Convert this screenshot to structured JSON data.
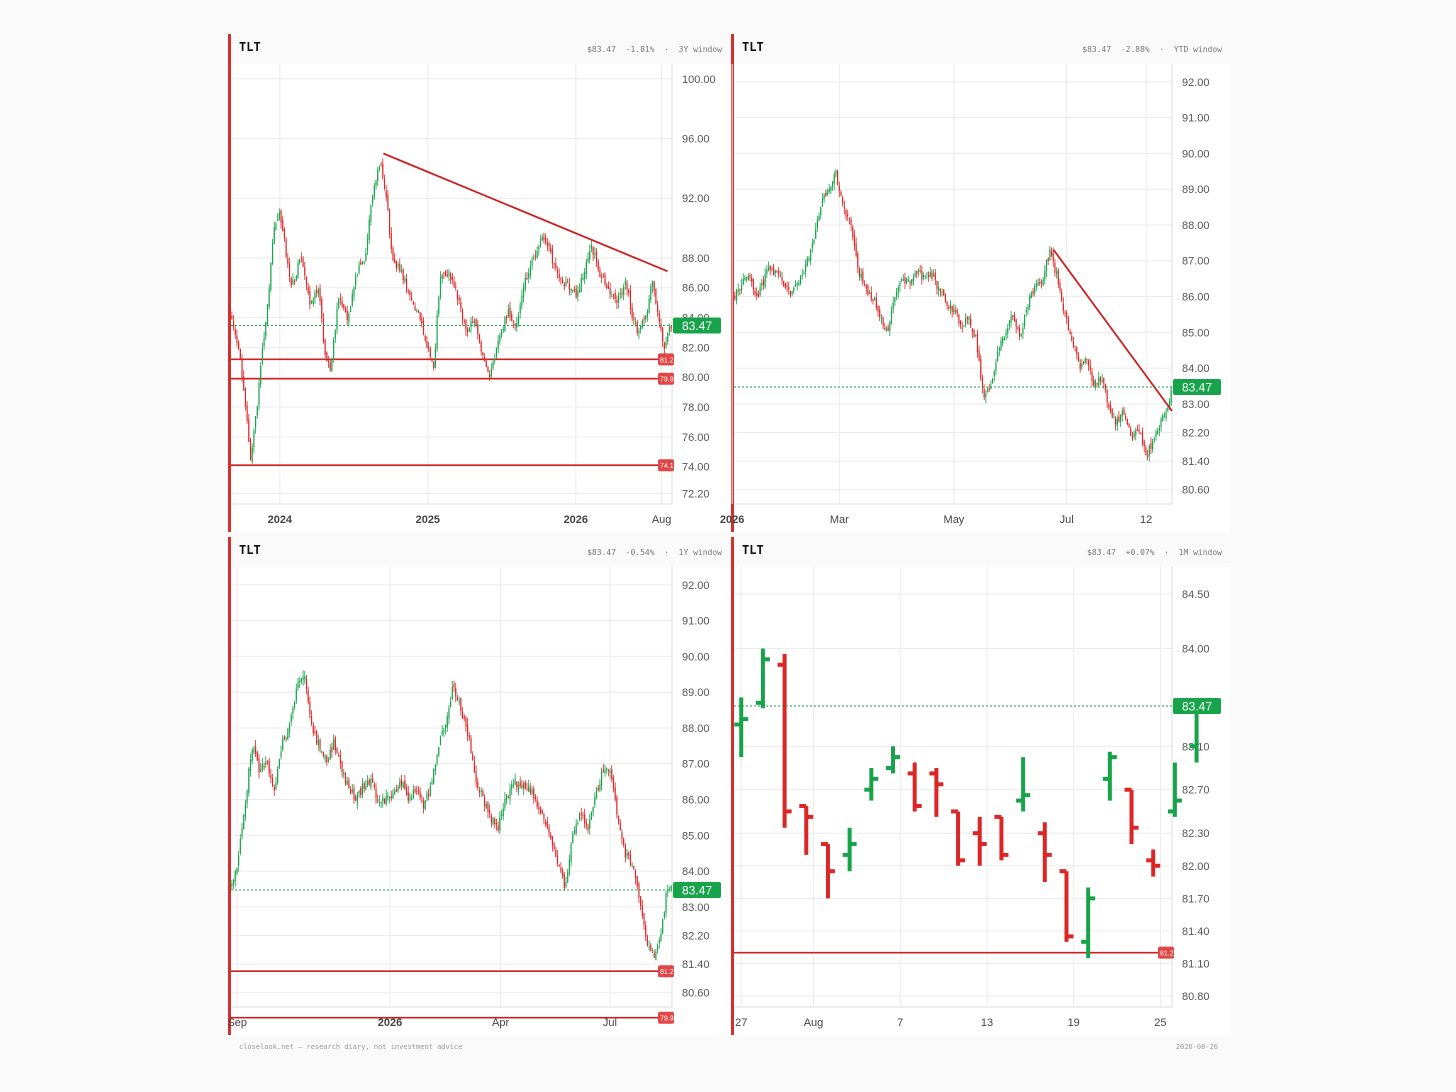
{
  "colors": {
    "up": "#16a34a",
    "down": "#dc2626",
    "line": "#cc1f1f",
    "grid": "#ececec",
    "axis_text": "#555555",
    "price_tag": "#16a34a"
  },
  "footer": {
    "left": "closelook.net — research diary, not investment advice",
    "right": "2026-08-26"
  },
  "panels": [
    {
      "title": "TLT",
      "price": "$83.47",
      "change": "-1.81%",
      "window": "3Y window",
      "current_price_label": "83.47"
    },
    {
      "title": "TLT",
      "price": "$83.47",
      "change": "-2.88%",
      "window": "YTD window",
      "current_price_label": "83.47"
    },
    {
      "title": "TLT",
      "price": "$83.47",
      "change": "-0.54%",
      "window": "1Y window",
      "current_price_label": "83.47"
    },
    {
      "title": "TLT",
      "price": "$83.47",
      "change": "+0.07%",
      "window": "1M window",
      "current_price_label": "83.47"
    }
  ],
  "chart_data": [
    {
      "type": "candlestick",
      "ticker": "TLT",
      "window": "3Y window",
      "ylim": [
        71.5,
        101
      ],
      "yticks": [
        "100.00",
        "96.00",
        "92.00",
        "88.00",
        "86.00",
        "84.00",
        "82.00",
        "80.00",
        "78.00",
        "76.00",
        "74.00",
        "72.20"
      ],
      "xticks": [
        {
          "label": "2024",
          "x": 2024.0
        },
        {
          "label": "2025",
          "x": 2025.0
        },
        {
          "label": "2026",
          "x": 2026.0
        },
        {
          "label": "Aug",
          "x": 2026.58
        }
      ],
      "xlim": [
        2023.67,
        2026.65
      ],
      "last_price": 83.47,
      "hlines": [
        {
          "value": 81.2,
          "tag": "81.2"
        },
        {
          "value": 79.9,
          "tag": "79.9"
        },
        {
          "value": 74.1,
          "tag": "74.1"
        }
      ],
      "trendlines": [
        {
          "x1": 2024.7,
          "y1": 95.0,
          "x2": 2026.62,
          "y2": 87.1
        }
      ],
      "path": [
        [
          2023.67,
          84.2
        ],
        [
          2023.72,
          82.0
        ],
        [
          2023.76,
          79.0
        ],
        [
          2023.8,
          74.5
        ],
        [
          2023.84,
          77.5
        ],
        [
          2023.88,
          81.5
        ],
        [
          2023.92,
          85.0
        ],
        [
          2023.96,
          90.0
        ],
        [
          2024.0,
          91.0
        ],
        [
          2024.04,
          88.5
        ],
        [
          2024.08,
          86.0
        ],
        [
          2024.14,
          88.0
        ],
        [
          2024.2,
          85.0
        ],
        [
          2024.26,
          86.0
        ],
        [
          2024.3,
          82.0
        ],
        [
          2024.34,
          80.5
        ],
        [
          2024.4,
          85.5
        ],
        [
          2024.46,
          84.0
        ],
        [
          2024.52,
          87.0
        ],
        [
          2024.58,
          88.0
        ],
        [
          2024.62,
          92.0
        ],
        [
          2024.68,
          94.5
        ],
        [
          2024.72,
          92.0
        ],
        [
          2024.76,
          88.0
        ],
        [
          2024.82,
          87.0
        ],
        [
          2024.88,
          85.5
        ],
        [
          2024.94,
          84.0
        ],
        [
          2025.0,
          82.0
        ],
        [
          2025.04,
          80.5
        ],
        [
          2025.08,
          86.5
        ],
        [
          2025.14,
          87.0
        ],
        [
          2025.2,
          85.5
        ],
        [
          2025.26,
          83.0
        ],
        [
          2025.32,
          84.0
        ],
        [
          2025.38,
          81.0
        ],
        [
          2025.42,
          80.0
        ],
        [
          2025.48,
          82.5
        ],
        [
          2025.54,
          84.5
        ],
        [
          2025.6,
          83.5
        ],
        [
          2025.66,
          86.5
        ],
        [
          2025.72,
          88.0
        ],
        [
          2025.78,
          89.5
        ],
        [
          2025.84,
          88.0
        ],
        [
          2025.9,
          86.5
        ],
        [
          2025.96,
          86.0
        ],
        [
          2026.0,
          85.5
        ],
        [
          2026.06,
          87.0
        ],
        [
          2026.1,
          89.0
        ],
        [
          2026.16,
          87.0
        ],
        [
          2026.22,
          86.0
        ],
        [
          2026.28,
          85.0
        ],
        [
          2026.34,
          86.5
        ],
        [
          2026.38,
          84.0
        ],
        [
          2026.42,
          83.0
        ],
        [
          2026.48,
          84.5
        ],
        [
          2026.52,
          86.5
        ],
        [
          2026.56,
          84.0
        ],
        [
          2026.6,
          82.0
        ],
        [
          2026.64,
          83.47
        ]
      ]
    },
    {
      "type": "candlestick",
      "ticker": "TLT",
      "window": "YTD window",
      "ylim": [
        80.2,
        92.5
      ],
      "yticks": [
        "92.00",
        "91.00",
        "90.00",
        "89.00",
        "88.00",
        "87.00",
        "86.00",
        "85.00",
        "84.00",
        "83.00",
        "82.20",
        "81.40",
        "80.60"
      ],
      "xticks": [
        {
          "label": "2026",
          "x": 0
        },
        {
          "label": "Mar",
          "x": 58
        },
        {
          "label": "May",
          "x": 120
        },
        {
          "label": "Jul",
          "x": 181
        },
        {
          "label": "12",
          "x": 224
        }
      ],
      "xlim": [
        1,
        238
      ],
      "last_price": 83.47,
      "hlines": [],
      "trendlines": [
        {
          "x1": 174,
          "y1": 87.3,
          "x2": 238,
          "y2": 82.8
        }
      ],
      "path": [
        [
          1,
          86.0
        ],
        [
          8,
          86.6
        ],
        [
          14,
          86.0
        ],
        [
          20,
          86.8
        ],
        [
          26,
          86.5
        ],
        [
          32,
          86.1
        ],
        [
          38,
          86.6
        ],
        [
          44,
          87.5
        ],
        [
          48,
          88.6
        ],
        [
          52,
          89.0
        ],
        [
          56,
          89.5
        ],
        [
          60,
          88.5
        ],
        [
          64,
          88.0
        ],
        [
          68,
          86.8
        ],
        [
          72,
          86.2
        ],
        [
          76,
          86.0
        ],
        [
          80,
          85.5
        ],
        [
          84,
          85.0
        ],
        [
          88,
          86.0
        ],
        [
          92,
          86.5
        ],
        [
          96,
          86.4
        ],
        [
          100,
          86.7
        ],
        [
          104,
          86.5
        ],
        [
          108,
          86.6
        ],
        [
          112,
          86.2
        ],
        [
          116,
          85.8
        ],
        [
          120,
          85.6
        ],
        [
          124,
          85.2
        ],
        [
          128,
          85.4
        ],
        [
          132,
          84.8
        ],
        [
          136,
          83.2
        ],
        [
          140,
          83.5
        ],
        [
          144,
          84.5
        ],
        [
          148,
          85.0
        ],
        [
          152,
          85.5
        ],
        [
          156,
          84.9
        ],
        [
          160,
          85.8
        ],
        [
          164,
          86.2
        ],
        [
          168,
          86.5
        ],
        [
          172,
          87.3
        ],
        [
          176,
          86.5
        ],
        [
          180,
          85.5
        ],
        [
          184,
          84.8
        ],
        [
          188,
          84.0
        ],
        [
          192,
          84.2
        ],
        [
          196,
          83.5
        ],
        [
          200,
          83.8
        ],
        [
          204,
          82.8
        ],
        [
          208,
          82.5
        ],
        [
          212,
          82.8
        ],
        [
          216,
          82.0
        ],
        [
          220,
          82.3
        ],
        [
          224,
          81.5
        ],
        [
          228,
          82.0
        ],
        [
          232,
          82.5
        ],
        [
          236,
          83.0
        ],
        [
          238,
          83.47
        ]
      ]
    },
    {
      "type": "candlestick",
      "ticker": "TLT",
      "window": "1Y window",
      "ylim": [
        80.2,
        92.5
      ],
      "yticks": [
        "92.00",
        "91.00",
        "90.00",
        "89.00",
        "88.00",
        "87.00",
        "86.00",
        "85.00",
        "84.00",
        "83.00",
        "82.20",
        "81.40",
        "80.60"
      ],
      "xticks": [
        {
          "label": "Sep",
          "x": 0
        },
        {
          "label": "2026",
          "x": 123
        },
        {
          "label": "Apr",
          "x": 212
        },
        {
          "label": "Jul",
          "x": 300
        }
      ],
      "xlim": [
        -5,
        350
      ],
      "last_price": 83.47,
      "hlines": [
        {
          "value": 81.2,
          "tag": "81.2"
        },
        {
          "value": 79.9,
          "tag": "79.9"
        }
      ],
      "trendlines": [],
      "path": [
        [
          -5,
          83.5
        ],
        [
          0,
          84.2
        ],
        [
          6,
          85.8
        ],
        [
          12,
          87.5
        ],
        [
          18,
          86.8
        ],
        [
          24,
          87.0
        ],
        [
          30,
          86.3
        ],
        [
          36,
          87.6
        ],
        [
          42,
          88.0
        ],
        [
          48,
          89.2
        ],
        [
          54,
          89.5
        ],
        [
          60,
          88.0
        ],
        [
          66,
          87.5
        ],
        [
          72,
          87.0
        ],
        [
          78,
          87.6
        ],
        [
          84,
          86.8
        ],
        [
          90,
          86.3
        ],
        [
          96,
          86.0
        ],
        [
          102,
          86.4
        ],
        [
          108,
          86.5
        ],
        [
          114,
          85.9
        ],
        [
          120,
          86.0
        ],
        [
          126,
          86.2
        ],
        [
          132,
          86.5
        ],
        [
          138,
          86.0
        ],
        [
          144,
          86.3
        ],
        [
          150,
          85.8
        ],
        [
          156,
          86.4
        ],
        [
          162,
          87.5
        ],
        [
          168,
          88.2
        ],
        [
          174,
          89.2
        ],
        [
          180,
          88.5
        ],
        [
          186,
          87.8
        ],
        [
          192,
          86.5
        ],
        [
          198,
          86.0
        ],
        [
          204,
          85.5
        ],
        [
          210,
          85.2
        ],
        [
          216,
          86.0
        ],
        [
          222,
          86.5
        ],
        [
          228,
          86.3
        ],
        [
          234,
          86.4
        ],
        [
          240,
          86.0
        ],
        [
          246,
          85.5
        ],
        [
          252,
          85.0
        ],
        [
          258,
          84.2
        ],
        [
          264,
          83.5
        ],
        [
          270,
          85.0
        ],
        [
          276,
          85.6
        ],
        [
          282,
          85.2
        ],
        [
          288,
          86.0
        ],
        [
          294,
          86.8
        ],
        [
          300,
          86.9
        ],
        [
          306,
          85.6
        ],
        [
          312,
          84.5
        ],
        [
          318,
          84.2
        ],
        [
          324,
          83.2
        ],
        [
          330,
          82.0
        ],
        [
          336,
          81.6
        ],
        [
          342,
          82.5
        ],
        [
          346,
          83.47
        ]
      ]
    },
    {
      "type": "ohlc",
      "ticker": "TLT",
      "window": "1M window",
      "ylim": [
        80.7,
        84.75
      ],
      "yticks": [
        "84.50",
        "84.00",
        "83.10",
        "82.70",
        "82.30",
        "82.00",
        "81.70",
        "81.40",
        "81.10",
        "80.80"
      ],
      "xticks": [
        {
          "label": "27",
          "x": 0
        },
        {
          "label": "Aug",
          "x": 5
        },
        {
          "label": "7",
          "x": 11
        },
        {
          "label": "13",
          "x": 17
        },
        {
          "label": "19",
          "x": 23
        },
        {
          "label": "25",
          "x": 29
        }
      ],
      "xlim": [
        -0.5,
        29.8
      ],
      "last_price": 83.47,
      "hlines": [
        {
          "value": 81.2,
          "tag": "81.2"
        }
      ],
      "trendlines": [],
      "bars": [
        {
          "x": 0,
          "o": 83.3,
          "h": 83.55,
          "l": 83.0,
          "c": 83.35
        },
        {
          "x": 1.5,
          "o": 83.5,
          "h": 84.0,
          "l": 83.45,
          "c": 83.9
        },
        {
          "x": 3,
          "o": 83.85,
          "h": 83.95,
          "l": 82.35,
          "c": 82.5
        },
        {
          "x": 4.5,
          "o": 82.55,
          "h": 82.55,
          "l": 82.1,
          "c": 82.45
        },
        {
          "x": 6,
          "o": 82.2,
          "h": 82.2,
          "l": 81.7,
          "c": 81.95
        },
        {
          "x": 7.5,
          "o": 82.1,
          "h": 82.35,
          "l": 81.95,
          "c": 82.2
        },
        {
          "x": 9,
          "o": 82.7,
          "h": 82.9,
          "l": 82.6,
          "c": 82.8
        },
        {
          "x": 10.5,
          "o": 82.9,
          "h": 83.1,
          "l": 82.85,
          "c": 83.0
        },
        {
          "x": 12,
          "o": 82.85,
          "h": 82.95,
          "l": 82.5,
          "c": 82.55
        },
        {
          "x": 13.5,
          "o": 82.85,
          "h": 82.9,
          "l": 82.45,
          "c": 82.75
        },
        {
          "x": 15,
          "o": 82.5,
          "h": 82.5,
          "l": 82.0,
          "c": 82.05
        },
        {
          "x": 16.5,
          "o": 82.3,
          "h": 82.45,
          "l": 82.0,
          "c": 82.2
        },
        {
          "x": 18,
          "o": 82.45,
          "h": 82.45,
          "l": 82.05,
          "c": 82.1
        },
        {
          "x": 19.5,
          "o": 82.6,
          "h": 83.0,
          "l": 82.5,
          "c": 82.65
        },
        {
          "x": 21,
          "o": 82.3,
          "h": 82.4,
          "l": 81.85,
          "c": 82.1
        },
        {
          "x": 22.5,
          "o": 81.95,
          "h": 81.95,
          "l": 81.3,
          "c": 81.35
        },
        {
          "x": 24,
          "o": 81.3,
          "h": 81.8,
          "l": 81.15,
          "c": 81.7
        },
        {
          "x": 25.5,
          "o": 82.8,
          "h": 83.05,
          "l": 82.6,
          "c": 83.0
        },
        {
          "x": 27,
          "o": 82.7,
          "h": 82.7,
          "l": 82.2,
          "c": 82.35
        },
        {
          "x": 28.5,
          "o": 82.05,
          "h": 82.15,
          "l": 81.9,
          "c": 82.0
        },
        {
          "x": 30,
          "o": 82.5,
          "h": 82.95,
          "l": 82.45,
          "c": 82.6
        },
        {
          "x": 31.5,
          "o": 83.1,
          "h": 83.5,
          "l": 82.95,
          "c": 83.47
        }
      ]
    }
  ]
}
